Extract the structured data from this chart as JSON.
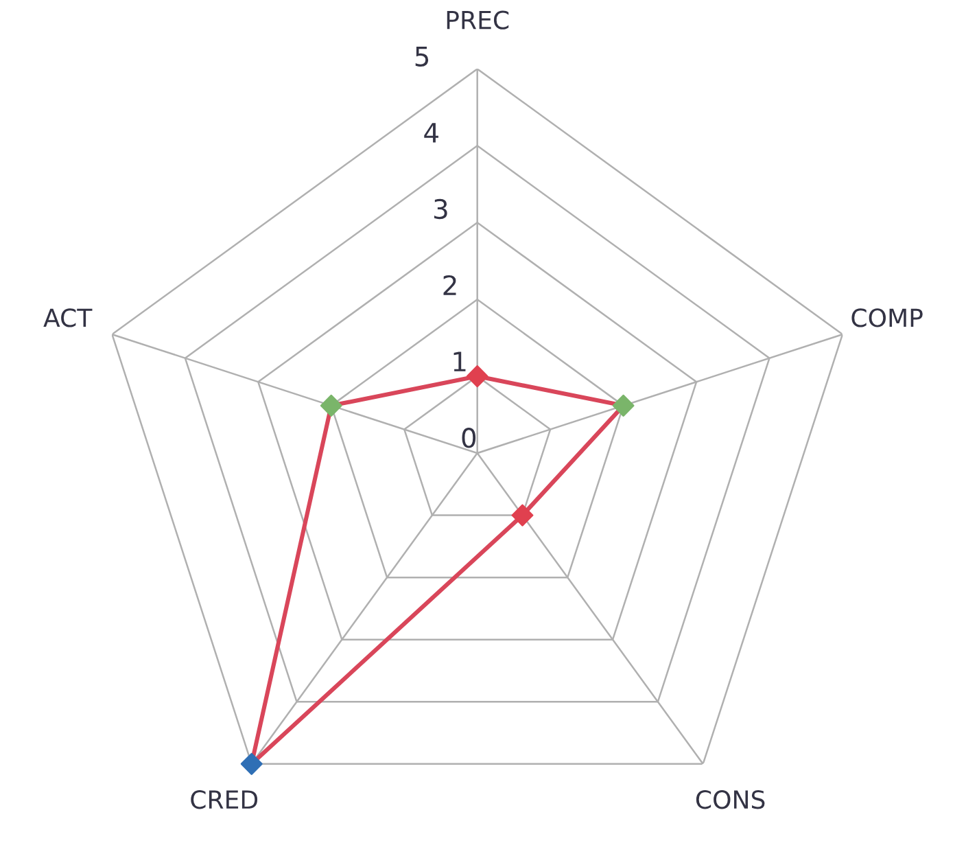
{
  "chart_data": {
    "type": "radar",
    "categories": [
      "PREC",
      "COMP",
      "CONS",
      "CRED",
      "ACT"
    ],
    "series": [
      {
        "color": "#d9465a",
        "colors": [
          "#e0404f",
          "#7ab56a",
          "#e0404f",
          "#2f6fb5",
          "#7ab56a"
        ],
        "values": [
          1,
          2,
          1,
          5,
          2
        ]
      }
    ],
    "ylim": [
      0,
      5
    ],
    "yticks": [
      0,
      1,
      2,
      3,
      4,
      5
    ],
    "grid": true,
    "marker": "diamond",
    "line_style": "solid"
  }
}
